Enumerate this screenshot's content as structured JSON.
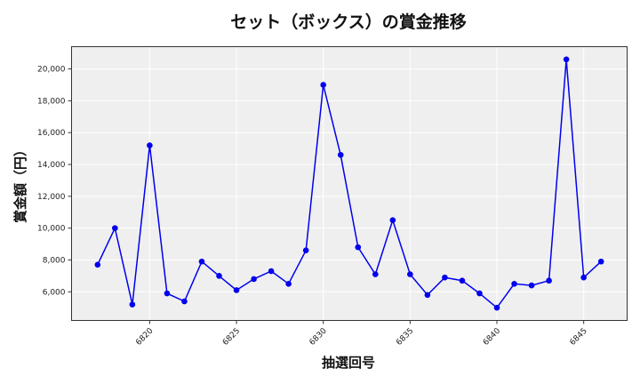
{
  "chart_data": {
    "type": "line",
    "title": "セット（ボックス）の賞金推移",
    "xlabel": "抽選回号",
    "ylabel": "賞金額（円）",
    "x": [
      6817,
      6818,
      6819,
      6820,
      6821,
      6822,
      6823,
      6824,
      6825,
      6826,
      6827,
      6828,
      6829,
      6830,
      6831,
      6832,
      6833,
      6834,
      6835,
      6836,
      6837,
      6838,
      6839,
      6840,
      6841,
      6842,
      6843,
      6844,
      6845,
      6846
    ],
    "series": [
      {
        "name": "賞金",
        "color": "#0000ee",
        "values": [
          7700,
          10000,
          5200,
          15200,
          5900,
          5400,
          7900,
          7000,
          6100,
          6800,
          7300,
          6500,
          8600,
          19000,
          14600,
          8800,
          7100,
          10500,
          7100,
          5800,
          6900,
          6700,
          5900,
          5000,
          6500,
          6400,
          6700,
          20600,
          6900,
          7900
        ]
      }
    ],
    "xticks": [
      6820,
      6825,
      6830,
      6835,
      6840,
      6845
    ],
    "xtick_labels": [
      "6820",
      "6825",
      "6830",
      "6835",
      "6840",
      "6845"
    ],
    "yticks": [
      6000,
      8000,
      10000,
      12000,
      14000,
      16000,
      18000,
      20000
    ],
    "ytick_labels": [
      "6,000",
      "8,000",
      "10,000",
      "12,000",
      "14,000",
      "16,000",
      "18,000",
      "20,000"
    ],
    "xlim": [
      6815.5,
      6847.5
    ],
    "ylim": [
      4200,
      21400
    ],
    "grid": true,
    "background": "#efefef",
    "legend": null
  }
}
